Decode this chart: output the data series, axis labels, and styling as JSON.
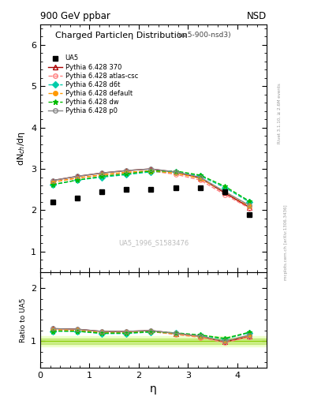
{
  "title_top": "900 GeV ppbar",
  "title_right": "NSD",
  "plot_title": "Charged Particleη Distribution",
  "plot_subtitle": "(ua5-900-nsd3)",
  "ylabel_main": "dN$_{ch}$/dη",
  "ylabel_ratio": "Ratio to UA5",
  "xlabel": "η",
  "watermark": "UA5_1996_S1583476",
  "rivet_text": "Rivet 3.1.10, ≥ 2.6M events",
  "mcplots_text": "mcplots.cern.ch [arXiv:1306.3436]",
  "ua5_eta": [
    0.25,
    0.75,
    1.25,
    1.75,
    2.25,
    2.75,
    3.25,
    3.75,
    4.25
  ],
  "ua5_dndeta": [
    2.2,
    2.3,
    2.45,
    2.5,
    2.5,
    2.55,
    2.55,
    2.45,
    1.9
  ],
  "pythia_eta": [
    0.25,
    0.75,
    1.25,
    1.75,
    2.25,
    2.75,
    3.25,
    3.75,
    4.25
  ],
  "p370_dndeta": [
    2.72,
    2.82,
    2.9,
    2.96,
    3.0,
    2.92,
    2.78,
    2.42,
    2.07
  ],
  "atlas_dndeta": [
    2.68,
    2.78,
    2.85,
    2.91,
    2.95,
    2.87,
    2.73,
    2.38,
    2.05
  ],
  "d6t_dndeta": [
    2.62,
    2.73,
    2.8,
    2.86,
    2.93,
    2.93,
    2.83,
    2.55,
    2.2
  ],
  "default_dndeta": [
    2.68,
    2.78,
    2.86,
    2.92,
    2.95,
    2.9,
    2.77,
    2.45,
    2.1
  ],
  "dw_dndeta": [
    2.62,
    2.73,
    2.82,
    2.88,
    2.95,
    2.95,
    2.85,
    2.58,
    2.22
  ],
  "p0_dndeta": [
    2.72,
    2.82,
    2.9,
    2.96,
    3.0,
    2.93,
    2.8,
    2.45,
    2.12
  ],
  "ylim_main": [
    0.5,
    6.5
  ],
  "yticks_main": [
    1,
    2,
    3,
    4,
    5,
    6
  ],
  "ylim_ratio": [
    0.5,
    2.3
  ],
  "yticks_ratio": [
    1.0,
    2.0
  ],
  "color_ua5": "#000000",
  "color_370": "#aa0000",
  "color_atlas": "#ff8080",
  "color_d6t": "#00ccaa",
  "color_default": "#ff9900",
  "color_dw": "#00bb00",
  "color_p0": "#888888",
  "ref_band_color_light": "#eeffcc",
  "ref_band_color_dark": "#aade44",
  "ref_line_color": "#88cc00",
  "background_color": "#ffffff"
}
